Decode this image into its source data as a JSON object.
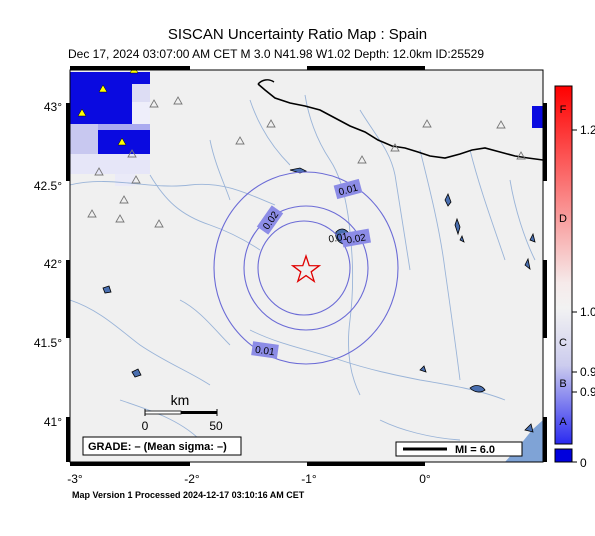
{
  "title": "SISCAN Uncertainty Ratio Map : Spain",
  "subtitle": "Dec 17, 2024 03:07:00 AM CET   M 3.0   N41.98 W1.02   Depth: 12.0km   ID:25529",
  "footer": "Map Version 1 Processed 2024-12-17 03:10:16 AM CET",
  "map": {
    "lon_range": [
      -3.05,
      1.05
    ],
    "lat_range": [
      40.72,
      43.25
    ],
    "lat_ticks": [
      {
        "label": "43°",
        "value": 43.0
      },
      {
        "label": "42.5°",
        "value": 42.5
      },
      {
        "label": "42°",
        "value": 42.0
      },
      {
        "label": "41.5°",
        "value": 41.5
      },
      {
        "label": "41°",
        "value": 41.0
      }
    ],
    "lon_ticks": [
      {
        "label": "-3°",
        "value": -3
      },
      {
        "label": "-2°",
        "value": -2
      },
      {
        "label": "-1°",
        "value": -1
      },
      {
        "label": "0°",
        "value": 0
      }
    ],
    "epicenter": {
      "lon": -1.02,
      "lat": 41.98
    },
    "contour_labels": [
      "0.02",
      "0.01",
      "0.02",
      "0.01",
      "0.01"
    ],
    "scale_bar": {
      "unit": "km",
      "ticks": [
        "0",
        "50"
      ]
    },
    "grade_text": "GRADE: – (Mean sigma: –)",
    "mi_legend": "MI = 6.0"
  },
  "colorbar": {
    "letters": [
      "F",
      "D",
      "C",
      "B",
      "A"
    ],
    "values": [
      "1.2",
      "1.0",
      "0.9",
      "0.9"
    ],
    "bottom_label": "0",
    "colors": {
      "top": "#ff0000",
      "mid": "#f2f2f2",
      "bottom": "#0000dd"
    }
  },
  "colors": {
    "grid_blue": "#0000dd",
    "contour": "#6b6bd6",
    "river": "#9ab4d8",
    "epicenter": "#e00000",
    "land": "#f0f0f0"
  }
}
